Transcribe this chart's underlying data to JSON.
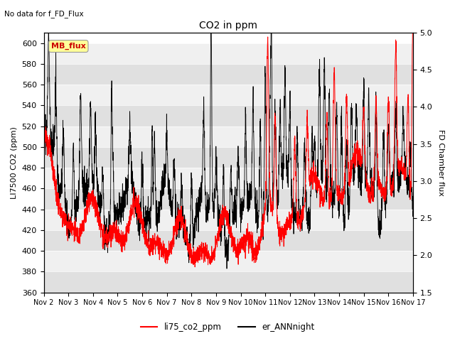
{
  "title": "CO2 in ppm",
  "subtitle": "No data for f_FD_Flux",
  "ylabel_left": "LI7500 CO2 (ppm)",
  "ylabel_right": "FD Chamber flux",
  "ylim_left": [
    360,
    610
  ],
  "ylim_right": [
    1.5,
    5.0
  ],
  "yticks_left": [
    360,
    380,
    400,
    420,
    440,
    460,
    480,
    500,
    520,
    540,
    560,
    580,
    600
  ],
  "yticks_right": [
    1.5,
    2.0,
    2.5,
    3.0,
    3.5,
    4.0,
    4.5,
    5.0
  ],
  "color_red": "#ff0000",
  "color_black": "#000000",
  "legend_label1": "li75_co2_ppm",
  "legend_label2": "er_ANNnight",
  "annotation_box": "MB_flux",
  "annotation_box_color": "#cc0000",
  "annotation_box_bg": "#ffff99",
  "bg_band_dark": "#e0e0e0",
  "bg_band_light": "#f0f0f0"
}
